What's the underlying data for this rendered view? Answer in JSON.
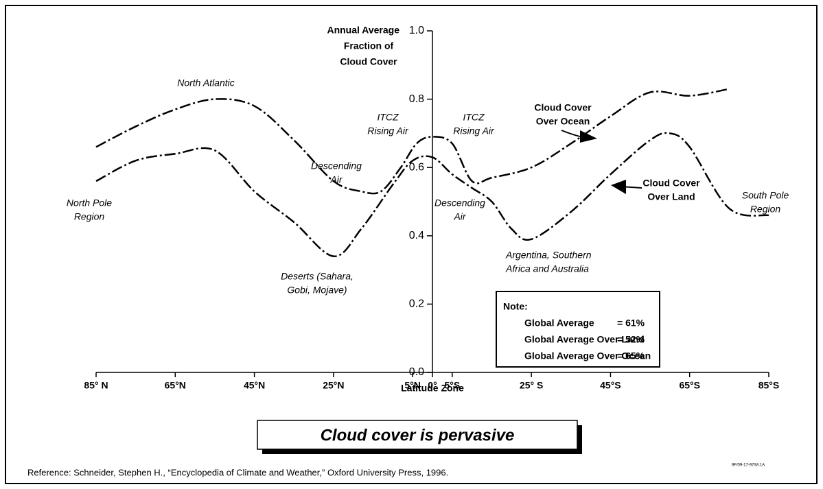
{
  "chart_data": {
    "type": "line",
    "y_label": [
      "Annual Average",
      "Fraction of",
      "Cloud Cover"
    ],
    "x_label": "Latitude Zone",
    "title": "Cloud cover is pervasive",
    "reference": "Reference:  Schneider, Stephen H., “Encyclopedia of Climate and Weather,” Oxford University Press, 1996.",
    "code": "9F/09-17-97/M.1A",
    "xlim": [
      -85,
      85
    ],
    "xticks": [
      {
        "value": -85,
        "label": "85° N"
      },
      {
        "value": -65,
        "label": "65°N"
      },
      {
        "value": -45,
        "label": "45°N"
      },
      {
        "value": -25,
        "label": "25°N"
      },
      {
        "value": -5,
        "label": "5°N"
      },
      {
        "value": 0,
        "label": "0°"
      },
      {
        "value": 5,
        "label": "5°S"
      },
      {
        "value": 25,
        "label": "25° S"
      },
      {
        "value": 45,
        "label": "45°S"
      },
      {
        "value": 65,
        "label": "65°S"
      },
      {
        "value": 85,
        "label": "85°S"
      }
    ],
    "ylim": [
      0,
      1
    ],
    "yticks": [
      {
        "value": 0,
        "label": "0.0"
      },
      0.2,
      0.4,
      0.6,
      0.8,
      {
        "value": 1,
        "label": "1.0"
      }
    ],
    "series": [
      {
        "name": "Cloud Cover Over Ocean",
        "color": "#000000",
        "x": [
          -85,
          -75,
          -65,
          -55,
          -45,
          -35,
          -25,
          -18,
          -13,
          -8,
          -4,
          0,
          5,
          10,
          15,
          25,
          35,
          45,
          55,
          65,
          75
        ],
        "values": [
          0.66,
          0.72,
          0.77,
          0.8,
          0.78,
          0.68,
          0.56,
          0.53,
          0.53,
          0.6,
          0.67,
          0.69,
          0.67,
          0.56,
          0.57,
          0.6,
          0.67,
          0.75,
          0.82,
          0.81,
          0.83
        ]
      },
      {
        "name": "Cloud Cover Over Land",
        "color": "#000000",
        "x": [
          -85,
          -75,
          -65,
          -55,
          -45,
          -35,
          -25,
          -18,
          -10,
          -5,
          0,
          5,
          10,
          15,
          20,
          25,
          35,
          45,
          55,
          60,
          65,
          75,
          85
        ],
        "values": [
          0.56,
          0.62,
          0.64,
          0.65,
          0.53,
          0.44,
          0.34,
          0.42,
          0.55,
          0.62,
          0.63,
          0.58,
          0.54,
          0.5,
          0.42,
          0.39,
          0.47,
          0.58,
          0.68,
          0.7,
          0.66,
          0.48,
          0.46
        ]
      }
    ],
    "annotations": [
      [
        "North Atlantic"
      ],
      [
        "North Pole",
        "Region"
      ],
      [
        "Descending",
        "Air"
      ],
      [
        "Deserts (Sahara,",
        "Gobi, Mojave)"
      ],
      [
        "ITCZ",
        "Rising Air"
      ],
      [
        "ITCZ",
        "Rising Air"
      ],
      [
        "Descending",
        "Air"
      ],
      [
        "Argentina, Southern",
        "Africa and Australia"
      ],
      [
        "Cloud Cover",
        "Over Ocean"
      ],
      [
        "Cloud Cover",
        "Over Land"
      ],
      [
        "South Pole",
        "Region"
      ]
    ],
    "note": {
      "title": "Note:",
      "rows": [
        [
          "Global Average",
          "=  61%"
        ],
        [
          "Global Average Over Land",
          "=  52%"
        ],
        [
          "Global Average Over Ocean",
          "=  65%"
        ]
      ]
    }
  }
}
